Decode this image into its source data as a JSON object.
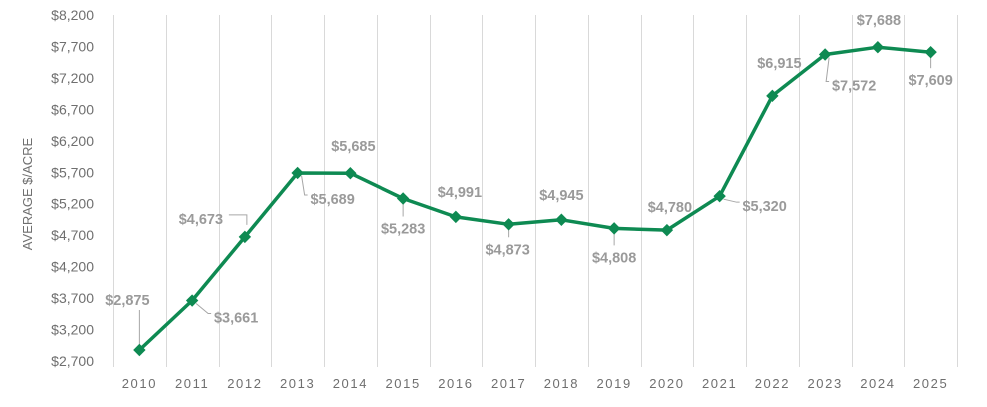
{
  "chart_data": {
    "type": "line",
    "title": "",
    "xlabel": "",
    "ylabel": "AVERAGE $/ACRE",
    "categories": [
      "2010",
      "2011",
      "2012",
      "2013",
      "2014",
      "2015",
      "2016",
      "2017",
      "2018",
      "2019",
      "2020",
      "2021",
      "2022",
      "2023",
      "2024",
      "2025"
    ],
    "series": [
      {
        "values": [
          2875,
          3661,
          4673,
          5689,
          5685,
          5283,
          4991,
          4873,
          4945,
          4808,
          4780,
          5320,
          6915,
          7572,
          7688,
          7609
        ],
        "labels": [
          "$2,875",
          "$3,661",
          "$4,673",
          "$5,689",
          "$5,685",
          "$5,283",
          "$4,991",
          "$4,873",
          "$4,945",
          "$4,808",
          "$4,780",
          "$5,320",
          "$6,915",
          "$7,572",
          "$7,688",
          "$7,609"
        ]
      }
    ],
    "ylim": [
      2700,
      8200
    ],
    "yticks": [
      2700,
      3200,
      3700,
      4200,
      4700,
      5200,
      5700,
      6200,
      6700,
      7200,
      7700,
      8200
    ],
    "ytick_labels": [
      "$2,700",
      "$3,200",
      "$3,700",
      "$4,200",
      "$4,700",
      "$5,200",
      "$5,700",
      "$6,200",
      "$6,700",
      "$7,200",
      "$7,700",
      "$8,200"
    ],
    "grid": "vertical",
    "legend": "none",
    "colors": {
      "line": "#0e8a52",
      "grid": "#d9d9d9",
      "text": "#6f6f6f",
      "data_label": "#9a9a9a"
    },
    "marker": "diamond"
  }
}
